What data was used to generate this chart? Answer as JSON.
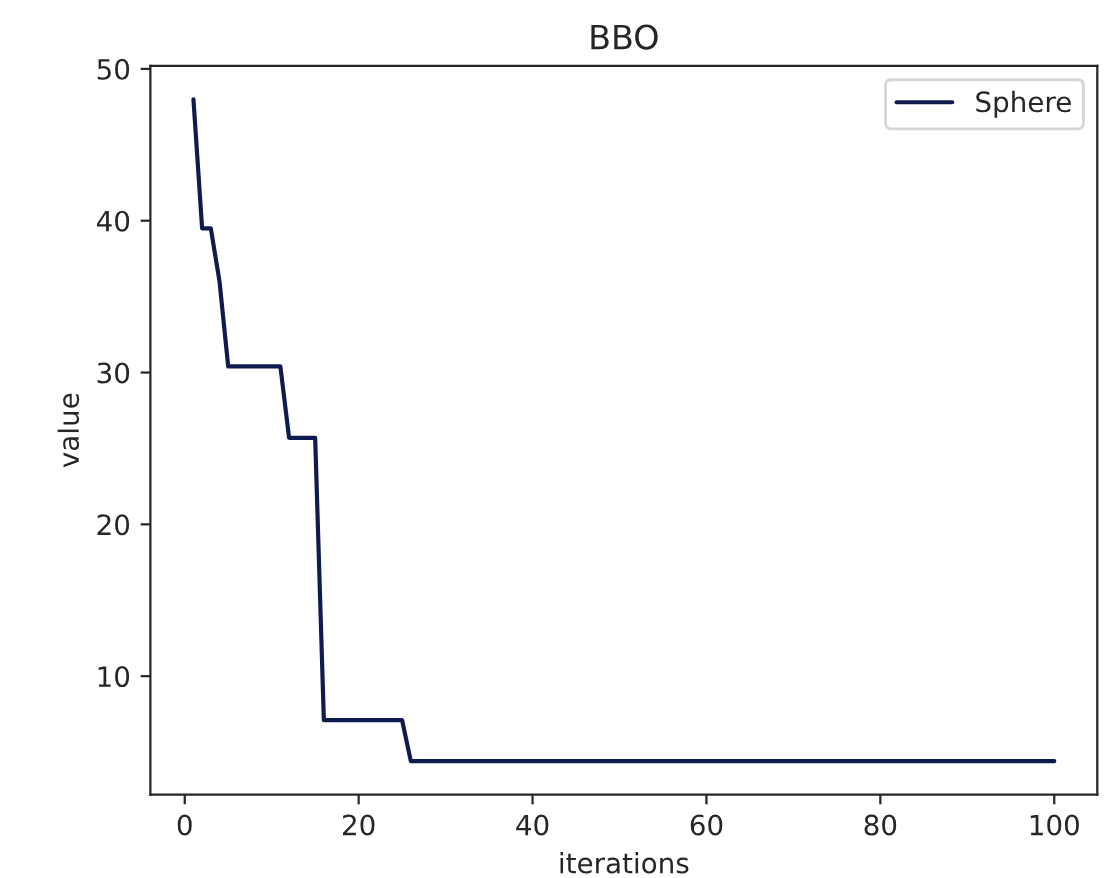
{
  "chart_data": {
    "type": "line",
    "title": "BBO",
    "xlabel": "iterations",
    "ylabel": "value",
    "x": [
      1,
      2,
      3,
      4,
      5,
      11,
      12,
      15,
      16,
      25,
      26,
      100
    ],
    "series": [
      {
        "name": "Sphere",
        "color": "#0d1b4f",
        "values": [
          48,
          39.5,
          39.5,
          36,
          30.4,
          30.4,
          25.7,
          25.7,
          7.1,
          7.1,
          4.4,
          4.4
        ]
      }
    ],
    "xlim": [
      -3.95,
      104.95
    ],
    "ylim": [
      2.2,
      50.2
    ],
    "xticks": [
      0,
      20,
      40,
      60,
      80,
      100
    ],
    "yticks": [
      10,
      20,
      30,
      40,
      50
    ],
    "grid": false,
    "legend": "top right",
    "marker": "none",
    "line_style": "solid"
  }
}
